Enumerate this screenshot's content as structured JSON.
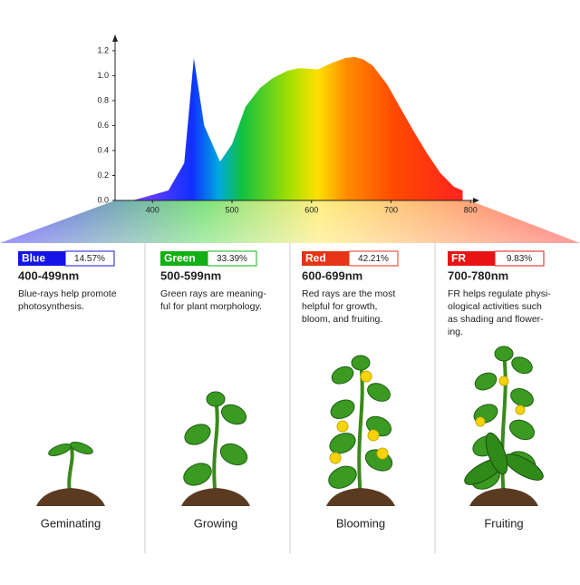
{
  "chart_data": {
    "type": "area",
    "x": [
      375,
      420,
      440,
      452,
      465,
      485,
      500,
      517,
      535,
      551,
      570,
      585,
      608,
      625,
      642,
      654,
      665,
      677,
      695,
      711,
      728,
      745,
      762,
      779,
      790,
      790
    ],
    "values": [
      0,
      0.08,
      0.3,
      1.14,
      0.6,
      0.31,
      0.45,
      0.75,
      0.9,
      0.98,
      1.04,
      1.06,
      1.05,
      1.1,
      1.14,
      1.15,
      1.13,
      1.08,
      0.93,
      0.75,
      0.56,
      0.38,
      0.22,
      0.11,
      0.08,
      0
    ],
    "xlim": [
      353,
      810
    ],
    "ylim": [
      0,
      1.25
    ],
    "xticks": [
      400,
      500,
      600,
      700,
      800
    ],
    "yticks": [
      {
        "value": 0,
        "label": "0.0"
      },
      0.2,
      0.4,
      0.6,
      0.8,
      {
        "value": 1,
        "label": "1.0"
      },
      1.2
    ]
  },
  "panels": [
    {
      "name": "Blue",
      "color": "#1414e6",
      "percent": "14.57%",
      "range": "400-499nm",
      "description": [
        "Blue-rays help promote",
        "photosynthesis."
      ],
      "stage": "Geminating"
    },
    {
      "name": "Green",
      "color": "#12b012",
      "percent": "33.39%",
      "range": "500-599nm",
      "description": [
        "Green rays are meaning-",
        "ful for plant morphology."
      ],
      "stage": "Growing"
    },
    {
      "name": "Red",
      "color": "#e63414",
      "percent": "42.21%",
      "range": "600-699nm",
      "description": [
        "Red rays are the most",
        "helpful for growth,",
        "bloom, and fruiting."
      ],
      "stage": "Blooming"
    },
    {
      "name": "FR",
      "color": "#e81414",
      "percent": "9.83%",
      "range": "700-780nm",
      "description": [
        "FR helps regulate physi-",
        "ological activities such",
        "as shading and flower-",
        "ing."
      ],
      "stage": "Fruiting"
    }
  ]
}
